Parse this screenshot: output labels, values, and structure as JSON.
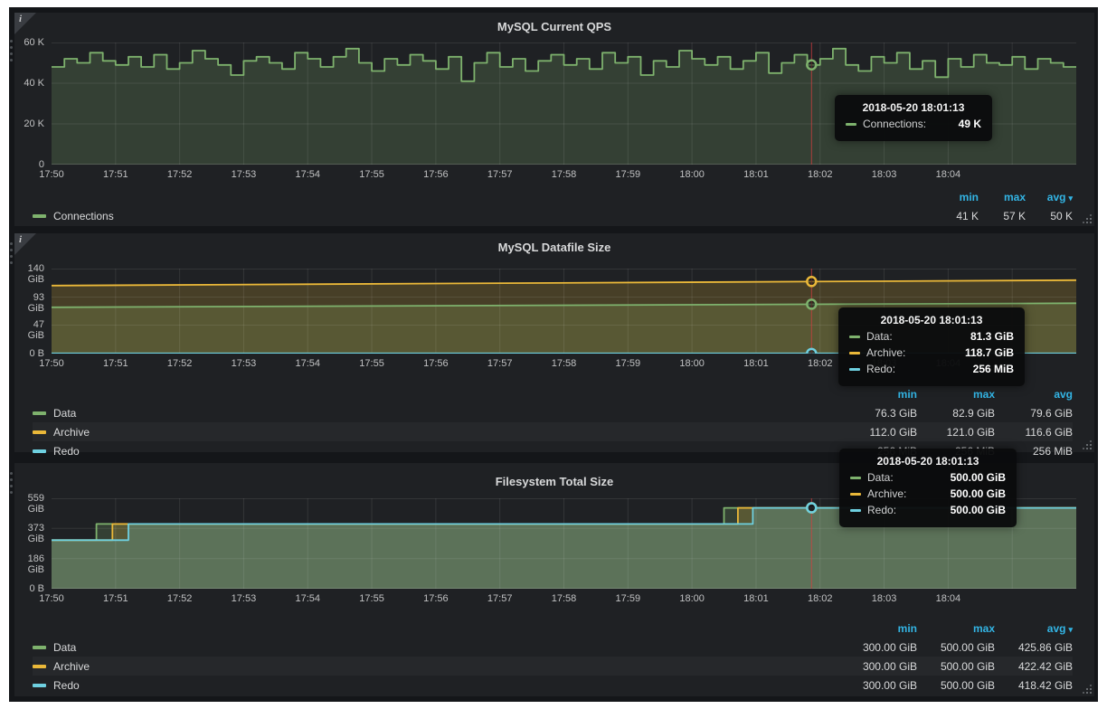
{
  "colors": {
    "green": "#7eb26d",
    "green_fill": "rgba(126,178,109,0.22)",
    "orange": "#eab839",
    "orange_fill": "rgba(234,184,57,0.20)",
    "blue": "#6ed0e0",
    "blue_fill": "rgba(110,208,224,0.22)",
    "link_blue": "#33b5e5",
    "crosshair_red": "#d43f3f",
    "panel_bg": "#1f2124",
    "dashboard_bg": "#141619"
  },
  "panels": [
    {
      "title": "MySQL Current QPS",
      "has_info_icon": true,
      "legend": {
        "headers": [
          "min",
          "max",
          "avg"
        ],
        "sort_caret": true,
        "rows": [
          {
            "name": "Connections",
            "color_key": "green",
            "stats": [
              "41 K",
              "57 K",
              "50 K"
            ]
          }
        ]
      },
      "tooltip": {
        "time": "2018-05-20 18:01:13",
        "rows": [
          {
            "label": "Connections:",
            "value": "49 K",
            "color_key": "green"
          }
        ]
      }
    },
    {
      "title": "MySQL Datafile Size",
      "has_info_icon": true,
      "legend": {
        "headers": [
          "min",
          "max",
          "avg"
        ],
        "sort_caret": false,
        "rows": [
          {
            "name": "Data",
            "color_key": "green",
            "stats": [
              "76.3 GiB",
              "82.9 GiB",
              "79.6 GiB"
            ]
          },
          {
            "name": "Archive",
            "color_key": "orange",
            "stats": [
              "112.0 GiB",
              "121.0 GiB",
              "116.6 GiB"
            ]
          },
          {
            "name": "Redo",
            "color_key": "blue",
            "stats": [
              "256 MiB",
              "256 MiB",
              "256 MiB"
            ]
          }
        ]
      },
      "tooltip": {
        "time": "2018-05-20 18:01:13",
        "rows": [
          {
            "label": "Data:",
            "value": "81.3 GiB",
            "color_key": "green"
          },
          {
            "label": "Archive:",
            "value": "118.7 GiB",
            "color_key": "orange"
          },
          {
            "label": "Redo:",
            "value": "256 MiB",
            "color_key": "blue"
          }
        ]
      }
    },
    {
      "title": "Filesystem Total Size",
      "has_info_icon": false,
      "legend": {
        "headers": [
          "min",
          "max",
          "avg"
        ],
        "sort_caret": true,
        "rows": [
          {
            "name": "Data",
            "color_key": "green",
            "stats": [
              "300.00 GiB",
              "500.00 GiB",
              "425.86 GiB"
            ]
          },
          {
            "name": "Archive",
            "color_key": "orange",
            "stats": [
              "300.00 GiB",
              "500.00 GiB",
              "422.42 GiB"
            ]
          },
          {
            "name": "Redo",
            "color_key": "blue",
            "stats": [
              "300.00 GiB",
              "500.00 GiB",
              "418.42 GiB"
            ]
          }
        ]
      },
      "tooltip": {
        "time": "2018-05-20 18:01:13",
        "rows": [
          {
            "label": "Data:",
            "value": "500.00 GiB",
            "color_key": "green"
          },
          {
            "label": "Archive:",
            "value": "500.00 GiB",
            "color_key": "orange"
          },
          {
            "label": "Redo:",
            "value": "500.00 GiB",
            "color_key": "blue"
          }
        ]
      }
    }
  ],
  "chart_data": [
    {
      "type": "line",
      "title": "MySQL Current QPS",
      "x_domain_s": 960,
      "x_tick_labels": [
        "17:50",
        "17:51",
        "17:52",
        "17:53",
        "17:54",
        "17:55",
        "17:56",
        "17:57",
        "17:58",
        "17:59",
        "18:00",
        "18:01",
        "18:02",
        "18:03",
        "18:04"
      ],
      "ylim": [
        0,
        60
      ],
      "y_unit": "K",
      "y_ticks": [
        {
          "v": 0,
          "label": "0"
        },
        {
          "v": 20,
          "label": "20 K"
        },
        {
          "v": 40,
          "label": "40 K"
        },
        {
          "v": 60,
          "label": "60 K"
        }
      ],
      "grid": true,
      "legend_position": "bottom",
      "crosshair_time_s": 712,
      "crosshair_markers": [
        {
          "color_key": "green",
          "v": 49
        }
      ],
      "series": [
        {
          "name": "Connections",
          "color_key": "green",
          "step": true,
          "interval_s": 12,
          "values": [
            48,
            52,
            50,
            55,
            51,
            49,
            53,
            48,
            54,
            47,
            50,
            56,
            52,
            49,
            44,
            51,
            53,
            50,
            47,
            55,
            52,
            48,
            53,
            57,
            50,
            46,
            52,
            49,
            54,
            51,
            47,
            53,
            41,
            50,
            55,
            48,
            52,
            46,
            51,
            54,
            49,
            52,
            47,
            55,
            50,
            53,
            44,
            51,
            48,
            56,
            52,
            49,
            53,
            47,
            51,
            55,
            45,
            50,
            54,
            49,
            52,
            57,
            49,
            46,
            53,
            50,
            55,
            47,
            51,
            43,
            52,
            48,
            54,
            50,
            49,
            53,
            47,
            52,
            50,
            48
          ]
        }
      ]
    },
    {
      "type": "line",
      "title": "MySQL Datafile Size",
      "x_domain_s": 960,
      "x_tick_labels": [
        "17:50",
        "17:51",
        "17:52",
        "17:53",
        "17:54",
        "17:55",
        "17:56",
        "17:57",
        "17:58",
        "17:59",
        "18:00",
        "18:01",
        "18:02",
        "18:03",
        "18:04"
      ],
      "ylim": [
        0,
        140
      ],
      "y_unit": "GiB",
      "y_ticks": [
        {
          "v": 0,
          "label": "0 B"
        },
        {
          "v": 47,
          "label": "47 GiB"
        },
        {
          "v": 93,
          "label": "93 GiB"
        },
        {
          "v": 140,
          "label": "140 GiB"
        }
      ],
      "grid": true,
      "legend_position": "bottom",
      "crosshair_time_s": 712,
      "crosshair_markers": [
        {
          "color_key": "orange",
          "v": 118.7
        },
        {
          "color_key": "green",
          "v": 81.3
        },
        {
          "color_key": "blue",
          "v": 0.25
        }
      ],
      "series": [
        {
          "name": "Data",
          "color_key": "green",
          "step": false,
          "points": [
            [
              0,
              76.3
            ],
            [
              960,
              82.9
            ]
          ]
        },
        {
          "name": "Archive",
          "color_key": "orange",
          "step": false,
          "points": [
            [
              0,
              112.0
            ],
            [
              960,
              121.0
            ]
          ]
        },
        {
          "name": "Redo",
          "color_key": "blue",
          "step": false,
          "points": [
            [
              0,
              0.25
            ],
            [
              960,
              0.25
            ]
          ]
        }
      ]
    },
    {
      "type": "line",
      "title": "Filesystem Total Size",
      "x_domain_s": 960,
      "x_tick_labels": [
        "17:50",
        "17:51",
        "17:52",
        "17:53",
        "17:54",
        "17:55",
        "17:56",
        "17:57",
        "17:58",
        "17:59",
        "18:00",
        "18:01",
        "18:02",
        "18:03",
        "18:04"
      ],
      "ylim": [
        0,
        559
      ],
      "y_unit": "GiB",
      "y_ticks": [
        {
          "v": 0,
          "label": "0 B"
        },
        {
          "v": 186,
          "label": "186 GiB"
        },
        {
          "v": 373,
          "label": "373 GiB"
        },
        {
          "v": 559,
          "label": "559 GiB"
        }
      ],
      "grid": true,
      "legend_position": "bottom",
      "crosshair_time_s": 712,
      "crosshair_markers": [
        {
          "color_key": "green",
          "v": 500
        },
        {
          "color_key": "orange",
          "v": 500
        },
        {
          "color_key": "blue",
          "v": 500
        }
      ],
      "series": [
        {
          "name": "Data",
          "color_key": "green",
          "step": false,
          "points": [
            [
              0,
              300
            ],
            [
              42,
              300
            ],
            [
              42,
              400
            ],
            [
              630,
              400
            ],
            [
              630,
              500
            ],
            [
              960,
              500
            ]
          ]
        },
        {
          "name": "Archive",
          "color_key": "orange",
          "step": false,
          "points": [
            [
              0,
              300
            ],
            [
              57,
              300
            ],
            [
              57,
              400
            ],
            [
              643,
              400
            ],
            [
              643,
              500
            ],
            [
              960,
              500
            ]
          ]
        },
        {
          "name": "Redo",
          "color_key": "blue",
          "step": false,
          "points": [
            [
              0,
              300
            ],
            [
              72,
              300
            ],
            [
              72,
              400
            ],
            [
              657,
              400
            ],
            [
              657,
              500
            ],
            [
              960,
              500
            ]
          ]
        }
      ]
    }
  ]
}
